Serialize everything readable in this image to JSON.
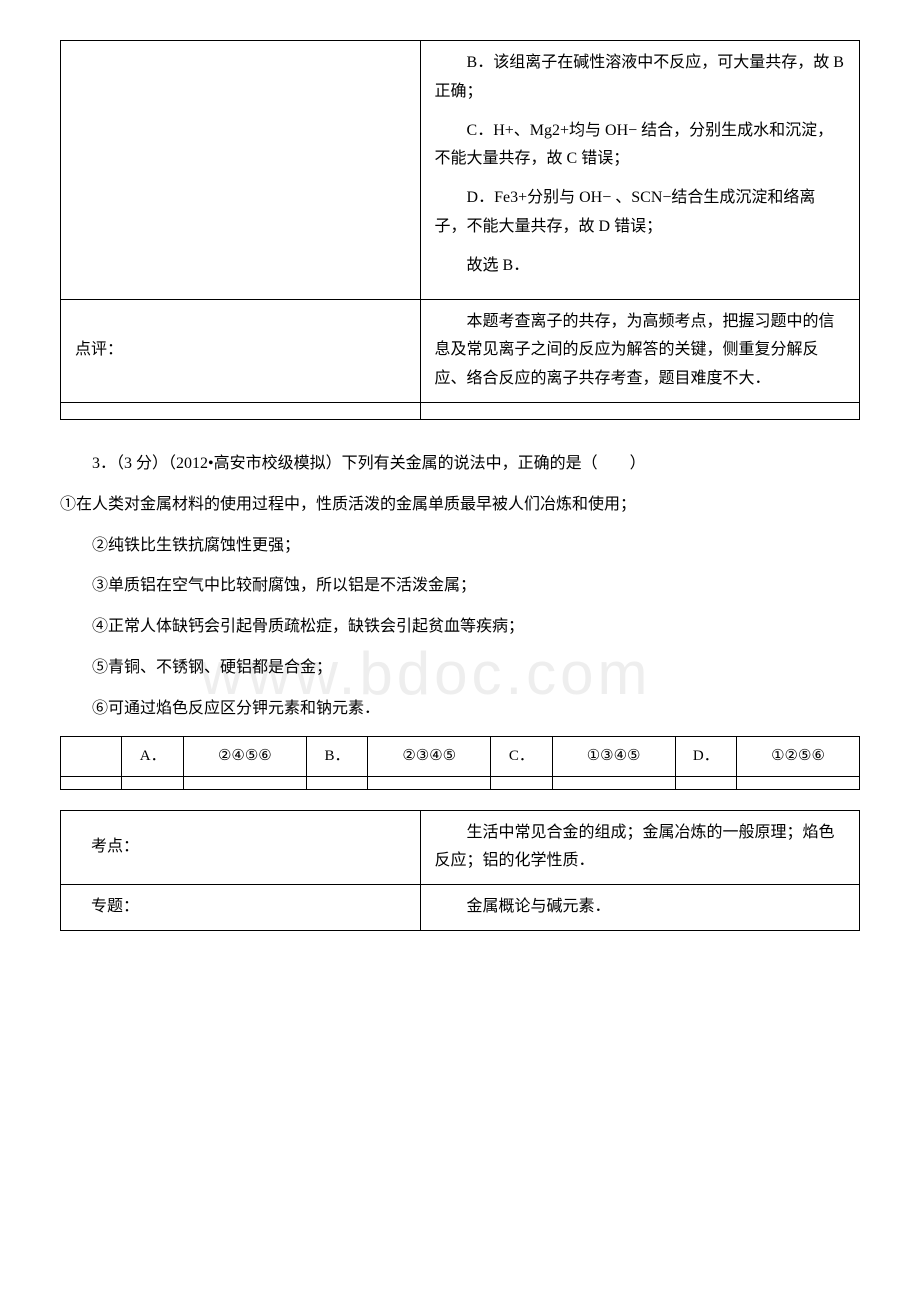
{
  "table1": {
    "row1_left": "",
    "row1_right_p1": "B．该组离子在碱性溶液中不反应，可大量共存，故 B 正确；",
    "row1_right_p2": "C．H+、Mg2+均与 OH− 结合，分别生成水和沉淀，不能大量共存，故 C 错误；",
    "row1_right_p3": "D．Fe3+分别与 OH− 、SCN−结合生成沉淀和络离子，不能大量共存，故 D 错误；",
    "row1_right_p4": "故选 B．",
    "row2_left": "点评：",
    "row2_right": "本题考查离子的共存，为高频考点，把握习题中的信息及常见离子之间的反应为解答的关键，侧重复分解反应、络合反应的离子共存考查，题目难度不大．"
  },
  "question3": {
    "header": "3．（3 分）（2012•高安市校级模拟）下列有关金属的说法中，正确的是（　　）",
    "item1": "①在人类对金属材料的使用过程中，性质活泼的金属单质最早被人们冶炼和使用；",
    "item2": "②纯铁比生铁抗腐蚀性更强；",
    "item3": "③单质铝在空气中比较耐腐蚀，所以铝是不活泼金属；",
    "item4": "④正常人体缺钙会引起骨质疏松症，缺铁会引起贫血等疾病；",
    "item5": "⑤青铜、不锈钢、硬铝都是合金；",
    "item6": "⑥可通过焰色反应区分钾元素和钠元素．"
  },
  "options": {
    "a_label": "A．",
    "a_val": "②④⑤⑥",
    "b_label": "B．",
    "b_val": "②③④⑤",
    "c_label": "C．",
    "c_val": "①③④⑤",
    "d_label": "D．",
    "d_val": "①②⑤⑥"
  },
  "table3": {
    "row1_left": "考点：",
    "row1_right": "生活中常见合金的组成；金属冶炼的一般原理；焰色反应；铝的化学性质．",
    "row2_left": "专题：",
    "row2_right": "金属概论与碱元素．"
  },
  "watermark": "www.bdoc.com"
}
